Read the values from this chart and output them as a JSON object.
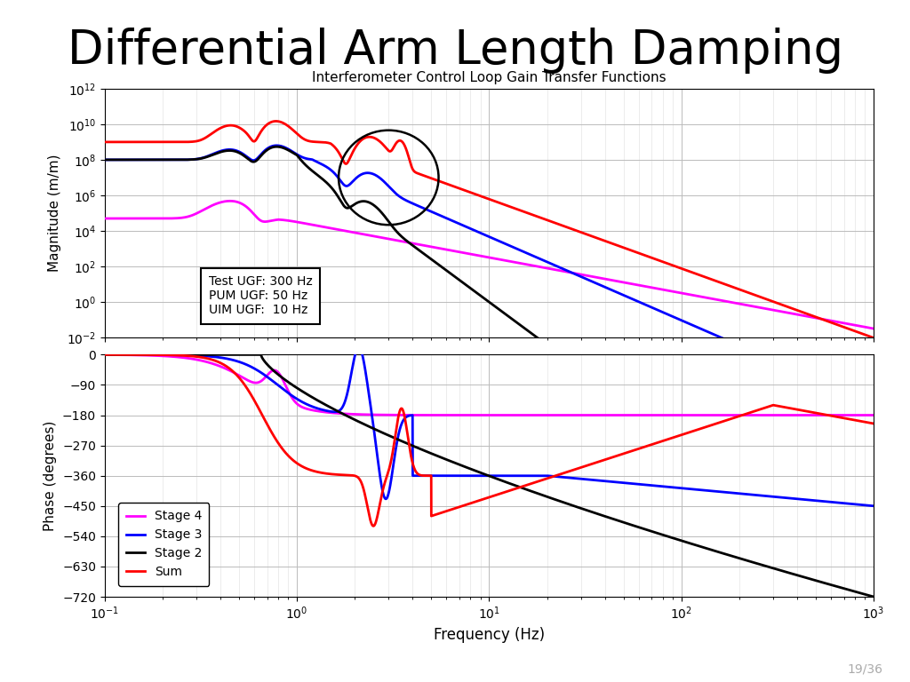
{
  "title": "Differential Arm Length Damping",
  "subplot_title": "Interferometer Control Loop Gain Transfer Functions",
  "xlabel": "Frequency (Hz)",
  "ylabel_mag": "Magnitude (m/m)",
  "ylabel_phase": "Phase (degrees)",
  "annotation_text": "Test UGF: 300 Hz\nPUM UGF: 50 Hz\nUIM UGF:  10 Hz",
  "legend_labels": [
    "Stage 4",
    "Stage 3",
    "Stage 2",
    "Sum"
  ],
  "legend_colors": [
    "#FF00FF",
    "#0000FF",
    "#000000",
    "#FF0000"
  ],
  "background_color": "#FFFFFF",
  "slide_number": "19/36",
  "title_fontsize": 38,
  "subtitle_fontsize": 11,
  "axis_label_fontsize": 11,
  "xlabel_fontsize": 12,
  "annotation_fontsize": 10,
  "legend_fontsize": 10,
  "slidenum_fontsize": 10,
  "slidenum_color": "#AAAAAA"
}
